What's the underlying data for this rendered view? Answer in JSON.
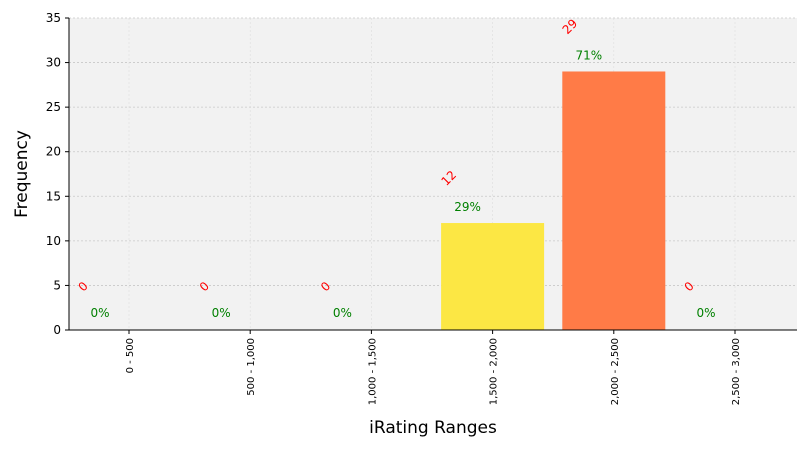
{
  "chart_data": {
    "type": "bar",
    "categories": [
      "0 - 500",
      "500 - 1,000",
      "1,000 - 1,500",
      "1,500 - 2,000",
      "2,000 - 2,500",
      "2,500 - 3,000"
    ],
    "values": [
      0,
      0,
      0,
      12,
      29,
      0
    ],
    "count_labels": [
      "0",
      "0",
      "0",
      "12",
      "29",
      "0"
    ],
    "percent_labels": [
      "0%",
      "0%",
      "0%",
      "29%",
      "71%",
      "0%"
    ],
    "bar_colors": [
      "#ffffff",
      "#ffffff",
      "#ffffff",
      "#fce744",
      "#ff7b47",
      "#ffffff"
    ],
    "xlabel": "iRating Ranges",
    "ylabel": "Frequency",
    "ylim": [
      0,
      35
    ],
    "yticks": [
      "0",
      "5",
      "10",
      "15",
      "20",
      "25",
      "30",
      "35"
    ],
    "grid": true,
    "count_label_color": "#ff0000",
    "percent_label_color": "#008000",
    "plot_background": "#f2f2f2"
  }
}
